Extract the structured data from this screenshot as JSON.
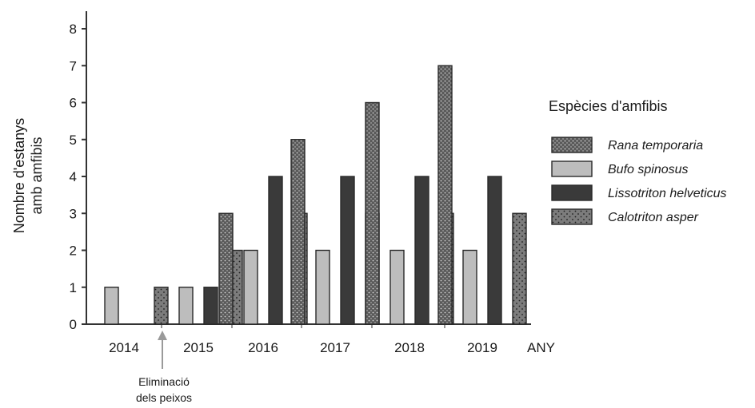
{
  "chart_data": {
    "type": "bar",
    "categories": [
      "2014",
      "2015",
      "2016",
      "2017",
      "2018",
      "2019"
    ],
    "xlabel": "ANY",
    "ylabel_lines": [
      "Nombre d'estanys",
      "amb amfibis"
    ],
    "ylim": [
      0,
      8
    ],
    "yticks": [
      0,
      1,
      2,
      3,
      4,
      5,
      6,
      7,
      8
    ],
    "legend_title": "Espècies d'amfibis",
    "legend_position": "right",
    "grid": false,
    "series": [
      {
        "name": "Rana temporaria",
        "pattern": "dense-dots-dark",
        "color": "#5a5a5a",
        "values": [
          0,
          0,
          3,
          5,
          6,
          7
        ]
      },
      {
        "name": "Bufo spinosus",
        "pattern": "solid-light",
        "color": "#b9b9b9",
        "values": [
          1,
          1,
          2,
          2,
          2,
          2
        ]
      },
      {
        "name": "Lissotriton helveticus",
        "pattern": "solid-dark",
        "color": "#3b3b3b",
        "values": [
          0,
          1,
          4,
          4,
          4,
          4
        ]
      },
      {
        "name": "Calotriton asper",
        "pattern": "sparse-dots",
        "color": "#7a7a7a",
        "values": [
          1,
          2,
          3,
          3,
          3,
          3
        ]
      }
    ],
    "annotation": {
      "lines": [
        "Eliminació",
        "dels peixos"
      ],
      "between": [
        "2014",
        "2015"
      ]
    }
  }
}
